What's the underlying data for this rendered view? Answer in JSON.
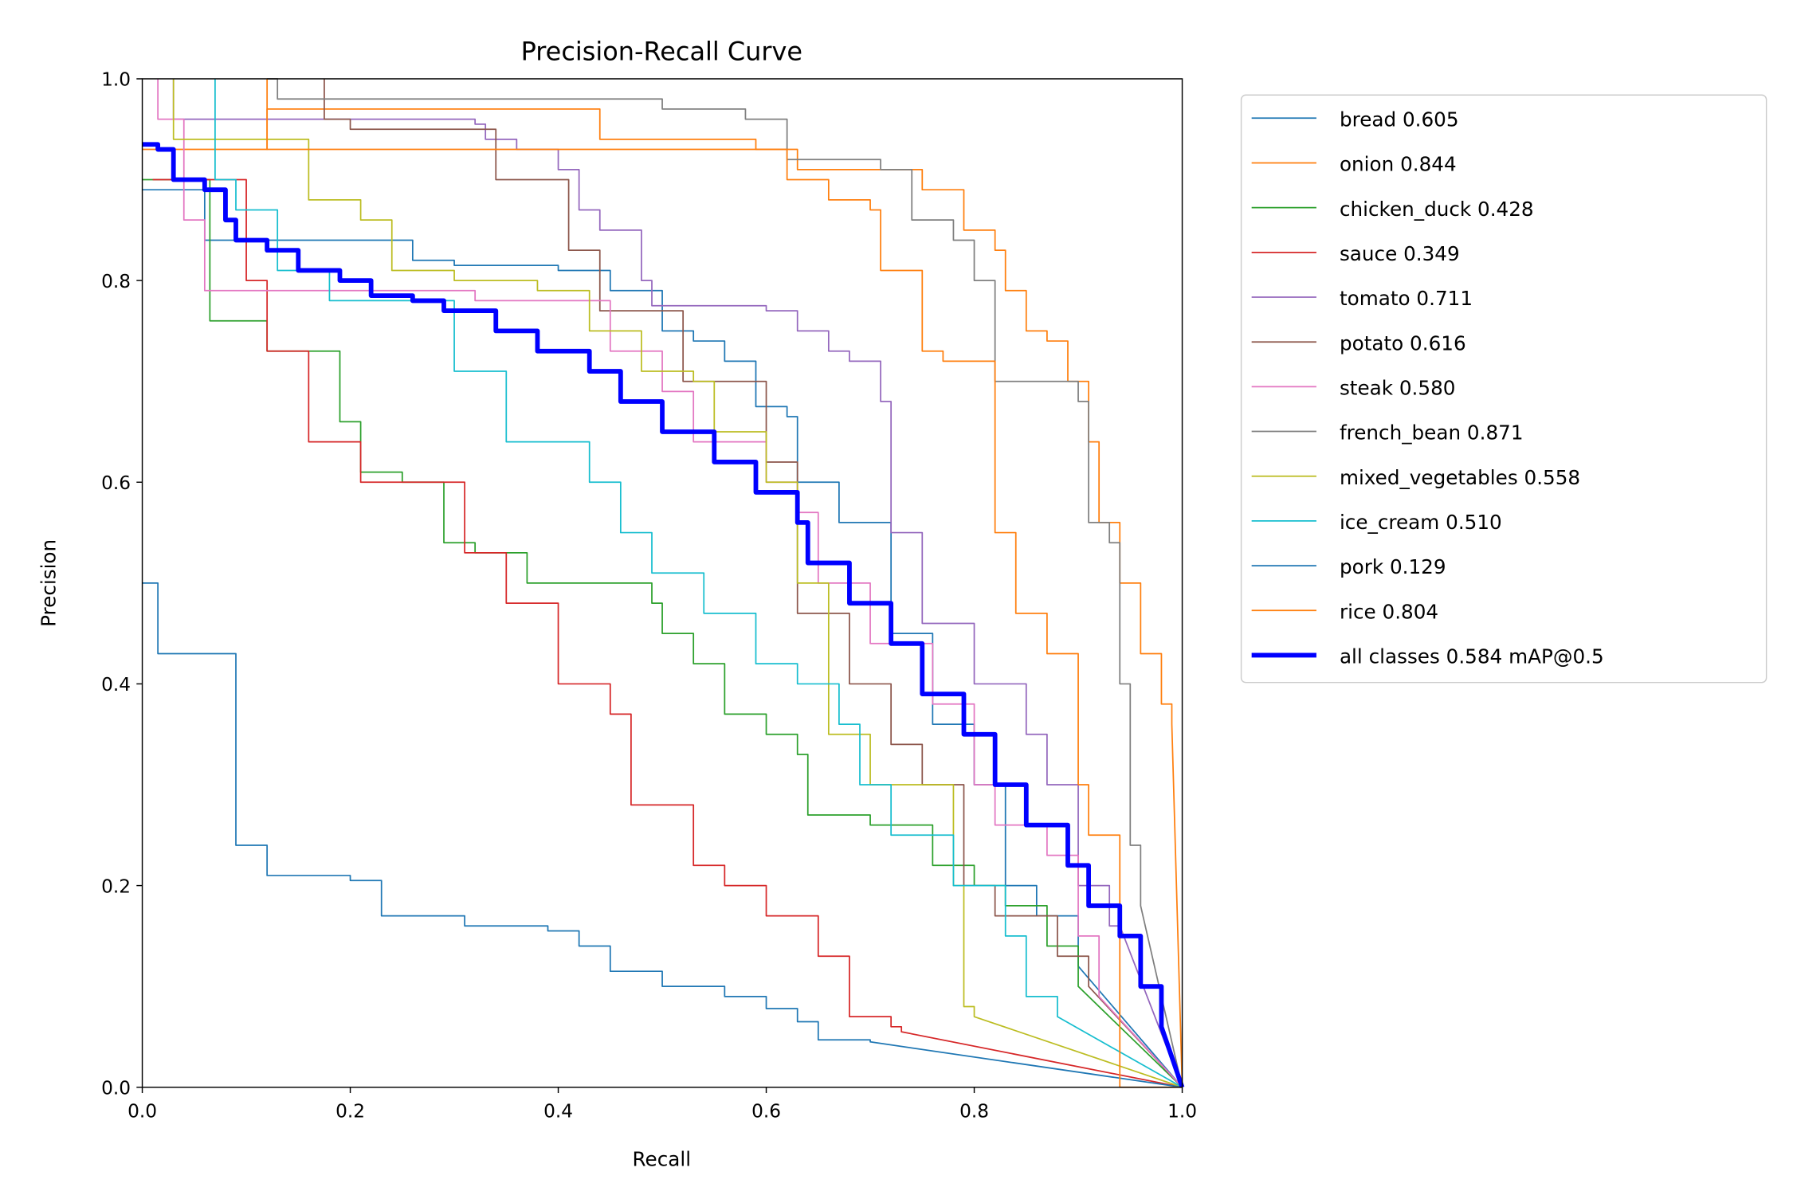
{
  "chart_data": {
    "type": "line",
    "title": "Precision-Recall Curve",
    "xlabel": "Recall",
    "ylabel": "Precision",
    "xlim": [
      0,
      1
    ],
    "ylim": [
      0,
      1
    ],
    "xticks": [
      "0.0",
      "0.2",
      "0.4",
      "0.6",
      "0.8",
      "1.0"
    ],
    "yticks": [
      "0.0",
      "0.2",
      "0.4",
      "0.6",
      "0.8",
      "1.0"
    ],
    "grid": false,
    "legend_position": "outside-right-top",
    "series": [
      {
        "name": "bread 0.605",
        "color": "#1f77b4",
        "width": 1,
        "points": [
          [
            0,
            0.89
          ],
          [
            0.06,
            0.89
          ],
          [
            0.06,
            0.84
          ],
          [
            0.24,
            0.84
          ],
          [
            0.26,
            0.82
          ],
          [
            0.3,
            0.815
          ],
          [
            0.4,
            0.81
          ],
          [
            0.45,
            0.79
          ],
          [
            0.49,
            0.79
          ],
          [
            0.5,
            0.75
          ],
          [
            0.53,
            0.74
          ],
          [
            0.56,
            0.72
          ],
          [
            0.59,
            0.675
          ],
          [
            0.62,
            0.665
          ],
          [
            0.63,
            0.6
          ],
          [
            0.67,
            0.56
          ],
          [
            0.72,
            0.54
          ],
          [
            0.72,
            0.45
          ],
          [
            0.76,
            0.36
          ],
          [
            0.8,
            0.3
          ],
          [
            0.83,
            0.2
          ],
          [
            0.86,
            0.17
          ],
          [
            0.9,
            0.12
          ],
          [
            1,
            0
          ]
        ]
      },
      {
        "name": "onion 0.844",
        "color": "#ff7f0e",
        "width": 1,
        "points": [
          [
            0,
            0.93
          ],
          [
            0.12,
            0.93
          ],
          [
            0.12,
            0.97
          ],
          [
            0.44,
            0.97
          ],
          [
            0.44,
            0.94
          ],
          [
            0.59,
            0.93
          ],
          [
            0.63,
            0.91
          ],
          [
            0.71,
            0.91
          ],
          [
            0.75,
            0.89
          ],
          [
            0.79,
            0.85
          ],
          [
            0.82,
            0.83
          ],
          [
            0.83,
            0.79
          ],
          [
            0.85,
            0.75
          ],
          [
            0.87,
            0.74
          ],
          [
            0.89,
            0.7
          ],
          [
            0.91,
            0.64
          ],
          [
            0.92,
            0.56
          ],
          [
            0.94,
            0.5
          ],
          [
            0.96,
            0.43
          ],
          [
            0.98,
            0.38
          ],
          [
            0.99,
            0.36
          ],
          [
            1,
            0
          ]
        ]
      },
      {
        "name": "chicken_duck 0.428",
        "color": "#2ca02c",
        "width": 1,
        "points": [
          [
            0,
            0.9
          ],
          [
            0.065,
            0.9
          ],
          [
            0.065,
            0.76
          ],
          [
            0.12,
            0.76
          ],
          [
            0.12,
            0.73
          ],
          [
            0.19,
            0.73
          ],
          [
            0.19,
            0.66
          ],
          [
            0.21,
            0.66
          ],
          [
            0.21,
            0.61
          ],
          [
            0.25,
            0.6
          ],
          [
            0.29,
            0.58
          ],
          [
            0.29,
            0.54
          ],
          [
            0.32,
            0.53
          ],
          [
            0.37,
            0.5
          ],
          [
            0.46,
            0.5
          ],
          [
            0.49,
            0.48
          ],
          [
            0.5,
            0.45
          ],
          [
            0.53,
            0.42
          ],
          [
            0.56,
            0.37
          ],
          [
            0.6,
            0.35
          ],
          [
            0.63,
            0.33
          ],
          [
            0.64,
            0.27
          ],
          [
            0.7,
            0.26
          ],
          [
            0.76,
            0.22
          ],
          [
            0.8,
            0.2
          ],
          [
            0.83,
            0.18
          ],
          [
            0.87,
            0.14
          ],
          [
            0.9,
            0.1
          ],
          [
            1,
            0
          ]
        ]
      },
      {
        "name": "sauce 0.349",
        "color": "#d62728",
        "width": 1,
        "points": [
          [
            0.01,
            0.9
          ],
          [
            0.09,
            0.9
          ],
          [
            0.1,
            0.8
          ],
          [
            0.12,
            0.73
          ],
          [
            0.16,
            0.64
          ],
          [
            0.2,
            0.64
          ],
          [
            0.21,
            0.6
          ],
          [
            0.31,
            0.6
          ],
          [
            0.31,
            0.53
          ],
          [
            0.33,
            0.53
          ],
          [
            0.35,
            0.48
          ],
          [
            0.4,
            0.4
          ],
          [
            0.45,
            0.37
          ],
          [
            0.47,
            0.35
          ],
          [
            0.47,
            0.28
          ],
          [
            0.53,
            0.22
          ],
          [
            0.56,
            0.2
          ],
          [
            0.6,
            0.17
          ],
          [
            0.65,
            0.13
          ],
          [
            0.68,
            0.1
          ],
          [
            0.68,
            0.07
          ],
          [
            0.72,
            0.06
          ],
          [
            0.73,
            0.055
          ],
          [
            1,
            0
          ]
        ]
      },
      {
        "name": "tomato 0.711",
        "color": "#9467bd",
        "width": 1,
        "points": [
          [
            0.03,
            1.0
          ],
          [
            0.03,
            0.96
          ],
          [
            0.32,
            0.955
          ],
          [
            0.33,
            0.94
          ],
          [
            0.36,
            0.93
          ],
          [
            0.4,
            0.91
          ],
          [
            0.42,
            0.87
          ],
          [
            0.44,
            0.85
          ],
          [
            0.48,
            0.8
          ],
          [
            0.49,
            0.775
          ],
          [
            0.6,
            0.77
          ],
          [
            0.63,
            0.75
          ],
          [
            0.66,
            0.73
          ],
          [
            0.68,
            0.72
          ],
          [
            0.71,
            0.68
          ],
          [
            0.72,
            0.55
          ],
          [
            0.75,
            0.46
          ],
          [
            0.8,
            0.4
          ],
          [
            0.85,
            0.35
          ],
          [
            0.87,
            0.3
          ],
          [
            0.9,
            0.2
          ],
          [
            0.93,
            0.16
          ],
          [
            0.94,
            0.16
          ],
          [
            1,
            0
          ]
        ]
      },
      {
        "name": "potato 0.616",
        "color": "#8c564b",
        "width": 1,
        "points": [
          [
            0.175,
            1.0
          ],
          [
            0.175,
            0.96
          ],
          [
            0.2,
            0.95
          ],
          [
            0.32,
            0.95
          ],
          [
            0.34,
            0.9
          ],
          [
            0.38,
            0.9
          ],
          [
            0.41,
            0.83
          ],
          [
            0.44,
            0.77
          ],
          [
            0.52,
            0.7
          ],
          [
            0.6,
            0.62
          ],
          [
            0.63,
            0.58
          ],
          [
            0.63,
            0.47
          ],
          [
            0.68,
            0.4
          ],
          [
            0.72,
            0.34
          ],
          [
            0.75,
            0.3
          ],
          [
            0.79,
            0.2
          ],
          [
            0.82,
            0.17
          ],
          [
            0.88,
            0.13
          ],
          [
            0.91,
            0.1
          ],
          [
            1,
            0
          ]
        ]
      },
      {
        "name": "steak 0.580",
        "color": "#e377c2",
        "width": 1,
        "points": [
          [
            0.015,
            1.0
          ],
          [
            0.015,
            0.96
          ],
          [
            0.04,
            0.86
          ],
          [
            0.06,
            0.79
          ],
          [
            0.3,
            0.79
          ],
          [
            0.32,
            0.78
          ],
          [
            0.38,
            0.78
          ],
          [
            0.45,
            0.73
          ],
          [
            0.5,
            0.69
          ],
          [
            0.53,
            0.64
          ],
          [
            0.6,
            0.6
          ],
          [
            0.63,
            0.57
          ],
          [
            0.65,
            0.5
          ],
          [
            0.7,
            0.44
          ],
          [
            0.76,
            0.38
          ],
          [
            0.8,
            0.3
          ],
          [
            0.82,
            0.26
          ],
          [
            0.87,
            0.23
          ],
          [
            0.9,
            0.15
          ],
          [
            0.92,
            0.09
          ],
          [
            1,
            0
          ]
        ]
      },
      {
        "name": "french_bean 0.871",
        "color": "#7f7f7f",
        "width": 1,
        "points": [
          [
            0.12,
            1.0
          ],
          [
            0.13,
            0.98
          ],
          [
            0.46,
            0.98
          ],
          [
            0.5,
            0.97
          ],
          [
            0.58,
            0.96
          ],
          [
            0.62,
            0.92
          ],
          [
            0.71,
            0.91
          ],
          [
            0.74,
            0.86
          ],
          [
            0.78,
            0.84
          ],
          [
            0.8,
            0.8
          ],
          [
            0.82,
            0.7
          ],
          [
            0.87,
            0.7
          ],
          [
            0.9,
            0.68
          ],
          [
            0.91,
            0.56
          ],
          [
            0.93,
            0.54
          ],
          [
            0.94,
            0.4
          ],
          [
            0.95,
            0.24
          ],
          [
            0.96,
            0.18
          ],
          [
            1,
            0
          ]
        ]
      },
      {
        "name": "mixed_vegetables 0.558",
        "color": "#bcbd22",
        "width": 1,
        "points": [
          [
            0.03,
            1.0
          ],
          [
            0.03,
            0.94
          ],
          [
            0.15,
            0.94
          ],
          [
            0.16,
            0.88
          ],
          [
            0.21,
            0.86
          ],
          [
            0.24,
            0.81
          ],
          [
            0.3,
            0.8
          ],
          [
            0.38,
            0.79
          ],
          [
            0.43,
            0.75
          ],
          [
            0.48,
            0.71
          ],
          [
            0.53,
            0.7
          ],
          [
            0.55,
            0.65
          ],
          [
            0.6,
            0.6
          ],
          [
            0.63,
            0.5
          ],
          [
            0.66,
            0.35
          ],
          [
            0.7,
            0.3
          ],
          [
            0.78,
            0.2
          ],
          [
            0.79,
            0.08
          ],
          [
            0.8,
            0.07
          ],
          [
            1,
            0
          ]
        ]
      },
      {
        "name": "ice_cream 0.510",
        "color": "#17becf",
        "width": 1,
        "points": [
          [
            0.07,
            1.0
          ],
          [
            0.07,
            0.9
          ],
          [
            0.09,
            0.87
          ],
          [
            0.13,
            0.81
          ],
          [
            0.18,
            0.78
          ],
          [
            0.3,
            0.78
          ],
          [
            0.3,
            0.71
          ],
          [
            0.35,
            0.64
          ],
          [
            0.43,
            0.6
          ],
          [
            0.46,
            0.55
          ],
          [
            0.49,
            0.51
          ],
          [
            0.54,
            0.47
          ],
          [
            0.59,
            0.42
          ],
          [
            0.63,
            0.4
          ],
          [
            0.67,
            0.36
          ],
          [
            0.69,
            0.3
          ],
          [
            0.72,
            0.25
          ],
          [
            0.78,
            0.2
          ],
          [
            0.83,
            0.15
          ],
          [
            0.85,
            0.09
          ],
          [
            0.88,
            0.07
          ],
          [
            1,
            0
          ]
        ]
      },
      {
        "name": "pork 0.129",
        "color": "#1f77b4",
        "width": 1,
        "points": [
          [
            0,
            0.5
          ],
          [
            0.015,
            0.5
          ],
          [
            0.015,
            0.43
          ],
          [
            0.087,
            0.43
          ],
          [
            0.09,
            0.24
          ],
          [
            0.12,
            0.21
          ],
          [
            0.2,
            0.205
          ],
          [
            0.23,
            0.17
          ],
          [
            0.31,
            0.16
          ],
          [
            0.39,
            0.155
          ],
          [
            0.42,
            0.14
          ],
          [
            0.45,
            0.115
          ],
          [
            0.5,
            0.1
          ],
          [
            0.56,
            0.09
          ],
          [
            0.6,
            0.078
          ],
          [
            0.63,
            0.065
          ],
          [
            0.65,
            0.047
          ],
          [
            0.7,
            0.045
          ],
          [
            1,
            0
          ]
        ]
      },
      {
        "name": "rice 0.804",
        "color": "#ff7f0e",
        "width": 1,
        "points": [
          [
            0.12,
            1.0
          ],
          [
            0.12,
            0.93
          ],
          [
            0.6,
            0.93
          ],
          [
            0.62,
            0.9
          ],
          [
            0.66,
            0.88
          ],
          [
            0.7,
            0.87
          ],
          [
            0.71,
            0.81
          ],
          [
            0.75,
            0.78
          ],
          [
            0.75,
            0.73
          ],
          [
            0.77,
            0.72
          ],
          [
            0.82,
            0.71
          ],
          [
            0.82,
            0.55
          ],
          [
            0.84,
            0.47
          ],
          [
            0.87,
            0.43
          ],
          [
            0.9,
            0.3
          ],
          [
            0.91,
            0.25
          ],
          [
            0.94,
            0.25
          ],
          [
            0.94,
            0
          ],
          [
            1,
            0
          ]
        ]
      },
      {
        "name": "all classes 0.584 mAP@0.5",
        "color": "#0000ff",
        "width": 4,
        "points": [
          [
            0,
            0.935
          ],
          [
            0.015,
            0.93
          ],
          [
            0.03,
            0.9
          ],
          [
            0.06,
            0.89
          ],
          [
            0.08,
            0.86
          ],
          [
            0.09,
            0.84
          ],
          [
            0.12,
            0.83
          ],
          [
            0.15,
            0.81
          ],
          [
            0.19,
            0.8
          ],
          [
            0.22,
            0.785
          ],
          [
            0.26,
            0.78
          ],
          [
            0.29,
            0.77
          ],
          [
            0.34,
            0.75
          ],
          [
            0.38,
            0.73
          ],
          [
            0.43,
            0.71
          ],
          [
            0.46,
            0.68
          ],
          [
            0.5,
            0.65
          ],
          [
            0.55,
            0.62
          ],
          [
            0.59,
            0.59
          ],
          [
            0.63,
            0.56
          ],
          [
            0.64,
            0.52
          ],
          [
            0.68,
            0.48
          ],
          [
            0.72,
            0.44
          ],
          [
            0.75,
            0.39
          ],
          [
            0.79,
            0.35
          ],
          [
            0.82,
            0.3
          ],
          [
            0.85,
            0.26
          ],
          [
            0.89,
            0.22
          ],
          [
            0.91,
            0.18
          ],
          [
            0.94,
            0.15
          ],
          [
            0.96,
            0.1
          ],
          [
            0.98,
            0.06
          ],
          [
            1,
            0
          ]
        ]
      }
    ]
  }
}
